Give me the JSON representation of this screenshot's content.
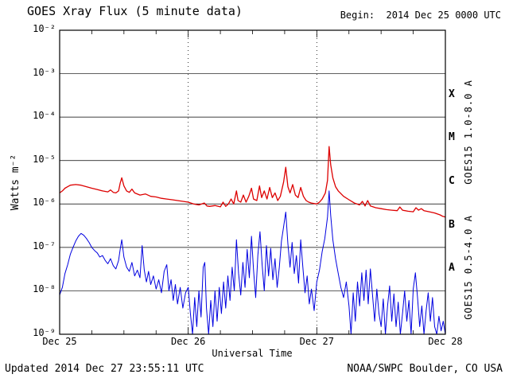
{
  "title": "GOES Xray Flux (5 minute data)",
  "begin_label": "Begin:  2014 Dec 25 0000 UTC",
  "footer": {
    "updated": "Updated 2014 Dec 27 23:55:11 UTC",
    "credit": "NOAA/SWPC Boulder, CO USA"
  },
  "chart_data": {
    "type": "line",
    "title": "GOES Xray Flux (5 minute data)",
    "xlabel": "Universal Time",
    "ylabel": "Watts m⁻²",
    "yscale": "log",
    "x_unit": "hours since 2014 Dec 25 0000 UTC",
    "xlim": [
      0,
      72
    ],
    "ylim_log10": [
      -9,
      -2
    ],
    "grid": {
      "horizontal": "solid line at each decade",
      "vertical": "dotted line at each day boundary"
    },
    "x_ticks": [
      {
        "hour": 0,
        "label": "Dec 25"
      },
      {
        "hour": 24,
        "label": "Dec 26"
      },
      {
        "hour": 48,
        "label": "Dec 27"
      },
      {
        "hour": 72,
        "label": "Dec 28"
      }
    ],
    "y_ticks_exponents": [
      -2,
      -3,
      -4,
      -5,
      -6,
      -7,
      -8,
      -9
    ],
    "y_tick_labels": [
      "10⁻²",
      "10⁻³",
      "10⁻⁴",
      "10⁻⁵",
      "10⁻⁶",
      "10⁻⁷",
      "10⁻⁸",
      "10⁻⁹"
    ],
    "flare_class_labels": [
      {
        "label": "X",
        "log10_center": -3.5
      },
      {
        "label": "M",
        "log10_center": -4.5
      },
      {
        "label": "C",
        "log10_center": -5.5
      },
      {
        "label": "B",
        "log10_center": -6.5
      },
      {
        "label": "A",
        "log10_center": -7.5
      }
    ],
    "series": [
      {
        "name": "GOES15 1.0-8.0 A",
        "color": "#dd0000",
        "points": [
          [
            0,
            1.8e-06
          ],
          [
            0.5,
            2e-06
          ],
          [
            1,
            2.3e-06
          ],
          [
            1.5,
            2.5e-06
          ],
          [
            2,
            2.7e-06
          ],
          [
            3,
            2.8e-06
          ],
          [
            4,
            2.7e-06
          ],
          [
            5,
            2.5e-06
          ],
          [
            6,
            2.3e-06
          ],
          [
            7,
            2.15e-06
          ],
          [
            8,
            2e-06
          ],
          [
            9,
            1.9e-06
          ],
          [
            9.5,
            2.1e-06
          ],
          [
            10,
            1.85e-06
          ],
          [
            10.5,
            1.8e-06
          ],
          [
            11,
            2e-06
          ],
          [
            11.3,
            3e-06
          ],
          [
            11.6,
            4e-06
          ],
          [
            12,
            2.6e-06
          ],
          [
            12.5,
            2e-06
          ],
          [
            13,
            1.85e-06
          ],
          [
            13.5,
            2.2e-06
          ],
          [
            14,
            1.8e-06
          ],
          [
            15,
            1.6e-06
          ],
          [
            16,
            1.7e-06
          ],
          [
            17,
            1.5e-06
          ],
          [
            18,
            1.45e-06
          ],
          [
            19,
            1.35e-06
          ],
          [
            20,
            1.3e-06
          ],
          [
            21,
            1.25e-06
          ],
          [
            22,
            1.2e-06
          ],
          [
            23,
            1.15e-06
          ],
          [
            24,
            1.1e-06
          ],
          [
            25,
            1e-06
          ],
          [
            26,
            9.5e-07
          ],
          [
            27,
            1.05e-06
          ],
          [
            27.5,
            9e-07
          ],
          [
            28,
            8.8e-07
          ],
          [
            29,
            9.2e-07
          ],
          [
            30,
            8.6e-07
          ],
          [
            30.5,
            1.1e-06
          ],
          [
            31,
            8.8e-07
          ],
          [
            31.5,
            1e-06
          ],
          [
            32,
            1.3e-06
          ],
          [
            32.5,
            1e-06
          ],
          [
            33,
            2e-06
          ],
          [
            33.3,
            1.2e-06
          ],
          [
            33.8,
            1.1e-06
          ],
          [
            34.3,
            1.6e-06
          ],
          [
            34.8,
            1.1e-06
          ],
          [
            35.3,
            1.5e-06
          ],
          [
            35.8,
            2.3e-06
          ],
          [
            36.2,
            1.3e-06
          ],
          [
            36.8,
            1.2e-06
          ],
          [
            37.3,
            2.6e-06
          ],
          [
            37.7,
            1.4e-06
          ],
          [
            38.2,
            2e-06
          ],
          [
            38.7,
            1.3e-06
          ],
          [
            39.2,
            2.4e-06
          ],
          [
            39.7,
            1.4e-06
          ],
          [
            40.2,
            1.8e-06
          ],
          [
            40.7,
            1.2e-06
          ],
          [
            41.2,
            1.5e-06
          ],
          [
            41.8,
            3.2e-06
          ],
          [
            42.2,
            7e-06
          ],
          [
            42.6,
            2.5e-06
          ],
          [
            43,
            1.8e-06
          ],
          [
            43.5,
            2.8e-06
          ],
          [
            44,
            1.6e-06
          ],
          [
            44.5,
            1.4e-06
          ],
          [
            45,
            2.4e-06
          ],
          [
            45.5,
            1.5e-06
          ],
          [
            46,
            1.2e-06
          ],
          [
            46.5,
            1.1e-06
          ],
          [
            47,
            1.05e-06
          ],
          [
            48,
            1e-06
          ],
          [
            48.5,
            1.1e-06
          ],
          [
            49,
            1.3e-06
          ],
          [
            49.6,
            1.8e-06
          ],
          [
            50,
            3.5e-06
          ],
          [
            50.3,
            2.1e-05
          ],
          [
            50.6,
            8e-06
          ],
          [
            51,
            4e-06
          ],
          [
            51.5,
            2.5e-06
          ],
          [
            52,
            2e-06
          ],
          [
            53,
            1.5e-06
          ],
          [
            54,
            1.25e-06
          ],
          [
            55,
            1.05e-06
          ],
          [
            56,
            9.5e-07
          ],
          [
            56.5,
            1.15e-06
          ],
          [
            57,
            9e-07
          ],
          [
            57.5,
            1.2e-06
          ],
          [
            58,
            9e-07
          ],
          [
            59,
            8.2e-07
          ],
          [
            60,
            7.8e-07
          ],
          [
            61,
            7.4e-07
          ],
          [
            62,
            7.2e-07
          ],
          [
            63,
            7e-07
          ],
          [
            63.5,
            8.5e-07
          ],
          [
            64,
            7.2e-07
          ],
          [
            65,
            6.8e-07
          ],
          [
            66,
            6.6e-07
          ],
          [
            66.5,
            8.2e-07
          ],
          [
            67,
            7.2e-07
          ],
          [
            67.5,
            7.8e-07
          ],
          [
            68,
            7e-07
          ],
          [
            69,
            6.6e-07
          ],
          [
            70,
            6.2e-07
          ],
          [
            71,
            5.6e-07
          ],
          [
            71.5,
            5.2e-07
          ],
          [
            72,
            5e-07
          ]
        ]
      },
      {
        "name": "GOES15 0.5-4.0 A",
        "color": "#0000e0",
        "points": [
          [
            0,
            8e-09
          ],
          [
            0.5,
            1.2e-08
          ],
          [
            1,
            2.5e-08
          ],
          [
            1.5,
            4e-08
          ],
          [
            2,
            7e-08
          ],
          [
            2.5,
            1e-07
          ],
          [
            3,
            1.4e-07
          ],
          [
            3.5,
            1.8e-07
          ],
          [
            4,
            2.1e-07
          ],
          [
            4.5,
            1.9e-07
          ],
          [
            5,
            1.6e-07
          ],
          [
            5.5,
            1.3e-07
          ],
          [
            6,
            1e-07
          ],
          [
            6.5,
            8.5e-08
          ],
          [
            7,
            7.5e-08
          ],
          [
            7.5,
            6e-08
          ],
          [
            8,
            6.5e-08
          ],
          [
            8.5,
            5e-08
          ],
          [
            9,
            4.2e-08
          ],
          [
            9.5,
            5.5e-08
          ],
          [
            10,
            3.8e-08
          ],
          [
            10.5,
            3.2e-08
          ],
          [
            11,
            5e-08
          ],
          [
            11.3,
            9e-08
          ],
          [
            11.6,
            1.5e-07
          ],
          [
            12,
            6e-08
          ],
          [
            12.5,
            3.5e-08
          ],
          [
            13,
            2.8e-08
          ],
          [
            13.5,
            4.5e-08
          ],
          [
            14,
            2.2e-08
          ],
          [
            14.5,
            3e-08
          ],
          [
            15,
            2e-08
          ],
          [
            15.4,
            1.1e-07
          ],
          [
            15.8,
            3e-08
          ],
          [
            16.2,
            1.6e-08
          ],
          [
            16.6,
            2.8e-08
          ],
          [
            17,
            1.4e-08
          ],
          [
            17.5,
            2.2e-08
          ],
          [
            18,
            1.1e-08
          ],
          [
            18.5,
            1.8e-08
          ],
          [
            19,
            9e-09
          ],
          [
            19.5,
            2.8e-08
          ],
          [
            20,
            4e-08
          ],
          [
            20.4,
            1e-08
          ],
          [
            20.8,
            1.8e-08
          ],
          [
            21.2,
            6e-09
          ],
          [
            21.6,
            1.4e-08
          ],
          [
            22,
            5e-09
          ],
          [
            22.5,
            1.2e-08
          ],
          [
            23,
            4e-09
          ],
          [
            23.5,
            9e-09
          ],
          [
            24,
            1.2e-08
          ],
          [
            24.4,
            3e-09
          ],
          [
            24.8,
            1e-09
          ],
          [
            25.2,
            7e-09
          ],
          [
            25.6,
            1.5e-09
          ],
          [
            26,
            1e-08
          ],
          [
            26.4,
            2.5e-09
          ],
          [
            26.8,
            3.5e-08
          ],
          [
            27.1,
            4.5e-08
          ],
          [
            27.4,
            4e-09
          ],
          [
            27.8,
            1e-09
          ],
          [
            28.2,
            6e-09
          ],
          [
            28.6,
            1.5e-09
          ],
          [
            29,
            1e-08
          ],
          [
            29.4,
            2e-09
          ],
          [
            29.8,
            1.2e-08
          ],
          [
            30.2,
            3e-09
          ],
          [
            30.6,
            1.6e-08
          ],
          [
            31,
            4e-09
          ],
          [
            31.4,
            2.2e-08
          ],
          [
            31.8,
            6e-09
          ],
          [
            32.2,
            3.5e-08
          ],
          [
            32.6,
            1e-08
          ],
          [
            33,
            1.5e-07
          ],
          [
            33.4,
            2.5e-08
          ],
          [
            33.8,
            8e-09
          ],
          [
            34.2,
            4.5e-08
          ],
          [
            34.6,
            1.2e-08
          ],
          [
            35,
            9e-08
          ],
          [
            35.4,
            2e-08
          ],
          [
            35.8,
            1.8e-07
          ],
          [
            36.2,
            3e-08
          ],
          [
            36.6,
            7e-09
          ],
          [
            37,
            6.5e-08
          ],
          [
            37.4,
            2.3e-07
          ],
          [
            37.8,
            4e-08
          ],
          [
            38.2,
            1e-08
          ],
          [
            38.6,
            1.1e-07
          ],
          [
            39,
            2.2e-08
          ],
          [
            39.4,
            9.5e-08
          ],
          [
            39.8,
            1.8e-08
          ],
          [
            40.2,
            5.5e-08
          ],
          [
            40.6,
            1.2e-08
          ],
          [
            41,
            3.5e-08
          ],
          [
            41.4,
            1.4e-07
          ],
          [
            41.8,
            3e-07
          ],
          [
            42.2,
            6.5e-07
          ],
          [
            42.6,
            1.2e-07
          ],
          [
            43,
            3.5e-08
          ],
          [
            43.4,
            1.3e-07
          ],
          [
            43.8,
            2.5e-08
          ],
          [
            44.2,
            6.5e-08
          ],
          [
            44.6,
            1.5e-08
          ],
          [
            45,
            1.5e-07
          ],
          [
            45.4,
            3.5e-08
          ],
          [
            45.8,
            9e-09
          ],
          [
            46.2,
            2.2e-08
          ],
          [
            46.6,
            5e-09
          ],
          [
            47,
            1.1e-08
          ],
          [
            47.5,
            3.5e-09
          ],
          [
            48,
            1.6e-08
          ],
          [
            48.5,
            3e-08
          ],
          [
            49,
            8e-08
          ],
          [
            49.5,
            1.6e-07
          ],
          [
            50,
            5e-07
          ],
          [
            50.3,
            2e-06
          ],
          [
            50.6,
            5.5e-07
          ],
          [
            51,
            1.5e-07
          ],
          [
            51.5,
            5.5e-08
          ],
          [
            52,
            2.5e-08
          ],
          [
            52.5,
            1.2e-08
          ],
          [
            53,
            7e-09
          ],
          [
            53.5,
            1.6e-08
          ],
          [
            54,
            4.5e-09
          ],
          [
            54.4,
            1e-09
          ],
          [
            54.8,
            9e-09
          ],
          [
            55.2,
            2e-09
          ],
          [
            55.6,
            1.6e-08
          ],
          [
            56,
            4.5e-09
          ],
          [
            56.4,
            2.6e-08
          ],
          [
            56.8,
            6e-09
          ],
          [
            57.2,
            3e-08
          ],
          [
            57.6,
            5e-09
          ],
          [
            58,
            3.2e-08
          ],
          [
            58.4,
            8e-09
          ],
          [
            58.8,
            2e-09
          ],
          [
            59.2,
            1.1e-08
          ],
          [
            59.6,
            3e-09
          ],
          [
            60,
            1.5e-09
          ],
          [
            60.4,
            6.5e-09
          ],
          [
            60.8,
            1e-09
          ],
          [
            61.2,
            4.5e-09
          ],
          [
            61.6,
            1.3e-08
          ],
          [
            62,
            2e-09
          ],
          [
            62.4,
            8.5e-09
          ],
          [
            62.8,
            1.5e-09
          ],
          [
            63.2,
            5.5e-09
          ],
          [
            63.6,
            1e-09
          ],
          [
            64,
            3e-09
          ],
          [
            64.4,
            1e-08
          ],
          [
            64.8,
            2e-09
          ],
          [
            65.2,
            6e-09
          ],
          [
            65.6,
            1e-09
          ],
          [
            66,
            1.1e-08
          ],
          [
            66.4,
            2.6e-08
          ],
          [
            66.8,
            7e-09
          ],
          [
            67.2,
            1.5e-09
          ],
          [
            67.6,
            4.5e-09
          ],
          [
            68,
            1e-09
          ],
          [
            68.4,
            3.5e-09
          ],
          [
            68.8,
            9e-09
          ],
          [
            69.2,
            2e-09
          ],
          [
            69.6,
            7e-09
          ],
          [
            70,
            1.5e-09
          ],
          [
            70.4,
            1e-09
          ],
          [
            70.8,
            2.6e-09
          ],
          [
            71.2,
            1.2e-09
          ],
          [
            71.6,
            2e-09
          ],
          [
            72,
            1e-09
          ]
        ]
      }
    ]
  }
}
